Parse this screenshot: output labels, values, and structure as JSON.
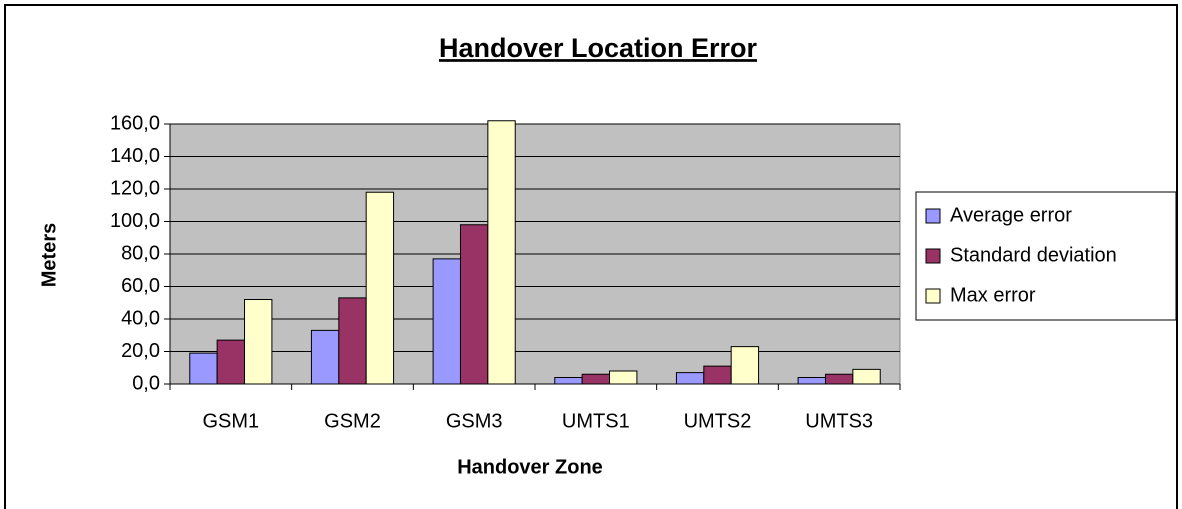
{
  "chart_data": {
    "type": "bar",
    "title": "Handover Location Error",
    "x_label": "Handover Zone",
    "y_label": "Meters",
    "categories": [
      "GSM1",
      "GSM2",
      "GSM3",
      "UMTS1",
      "UMTS2",
      "UMTS3"
    ],
    "series": [
      {
        "name": "Average error",
        "color": "#9999ff",
        "values": [
          19,
          33,
          77,
          4,
          7,
          4
        ]
      },
      {
        "name": "Standard deviation",
        "color": "#993366",
        "values": [
          27,
          53,
          98,
          6,
          11,
          6
        ]
      },
      {
        "name": "Max error",
        "color": "#ffffcc",
        "values": [
          52,
          118,
          162,
          8,
          23,
          9
        ]
      }
    ],
    "ylim": [
      0,
      160
    ],
    "yticks": [
      {
        "value": 0,
        "label": "0,0"
      },
      {
        "value": 20,
        "label": "20,0"
      },
      {
        "value": 40,
        "label": "40,0"
      },
      {
        "value": 60,
        "label": "60,0"
      },
      {
        "value": 80,
        "label": "80,0"
      },
      {
        "value": 100,
        "label": "100,0"
      },
      {
        "value": 120,
        "label": "120,0"
      },
      {
        "value": 140,
        "label": "140,0"
      },
      {
        "value": 160,
        "label": "160,0"
      }
    ],
    "grid": true,
    "legend": "right"
  }
}
